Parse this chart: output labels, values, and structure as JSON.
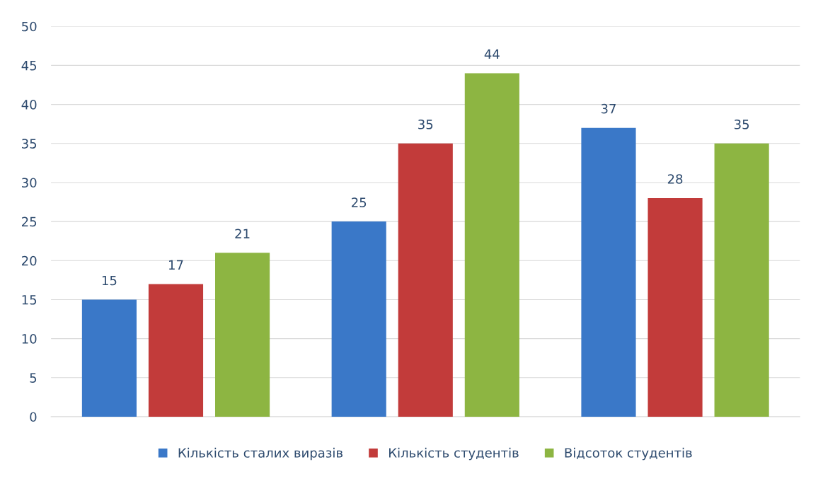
{
  "chart_data": {
    "type": "bar",
    "categories": [
      null,
      null,
      null
    ],
    "series": [
      {
        "name": "Кількість сталих виразів",
        "color": "#3a78c8",
        "values": [
          15,
          25,
          37
        ]
      },
      {
        "name": "Кількість студентів",
        "color": "#c23b3a",
        "values": [
          17,
          35,
          28
        ]
      },
      {
        "name": "Відсоток студентів",
        "color": "#8db542",
        "values": [
          21,
          44,
          35
        ]
      }
    ],
    "ylim": [
      0,
      50
    ],
    "yticks": [
      0,
      5,
      10,
      15,
      20,
      25,
      30,
      35,
      40,
      45,
      50
    ],
    "grid": "y",
    "legend": "bottom",
    "data_labels": true
  }
}
